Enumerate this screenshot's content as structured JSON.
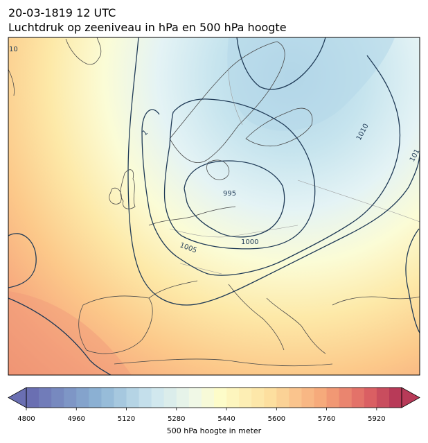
{
  "titles": {
    "line1": "20-03-1819 12 UTC",
    "line2": "Luchtdruk op zeeniveau in hPa en 500 hPa hoogte"
  },
  "isobar_labels": {
    "p995": "995",
    "p1000": "1000",
    "p1005": "1005",
    "p1010": "1010",
    "edge_left": "10",
    "edge_right": "101",
    "edge_top": "1"
  },
  "colorbar": {
    "min": 4800,
    "max": 6000,
    "step": 40,
    "ticks": [
      "4800",
      "4960",
      "5120",
      "5280",
      "5440",
      "5600",
      "5760",
      "5920"
    ],
    "label": "500 hPa hoogte in meter"
  },
  "colors": {
    "low": "#7479b8",
    "mid": "#fdfcca",
    "high": "#c1455c",
    "isobar": "#1f3a56",
    "coast": "#4a4a4a",
    "border": "#9a9a9a"
  }
}
